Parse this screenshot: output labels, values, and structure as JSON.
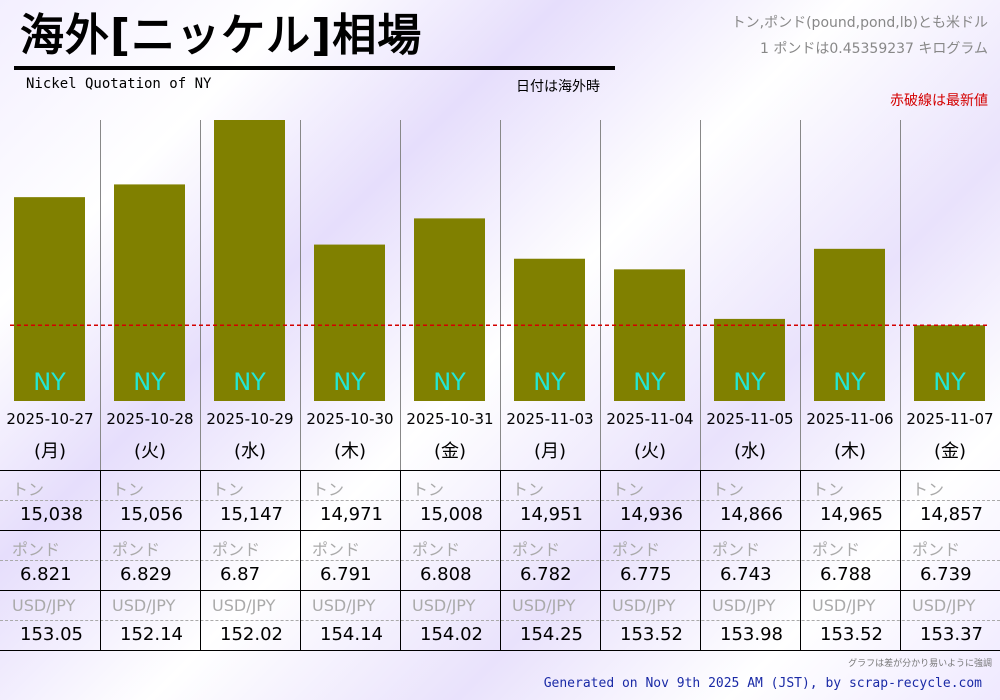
{
  "header": {
    "title": "海外[ニッケル]相場",
    "subtitle": "Nickel Quotation of NY",
    "date_note": "日付は海外時",
    "unit_note_1": "トン,ポンド(pound,pond,lb)とも米ドル",
    "unit_note_2": "1 ポンドは0.45359237 キログラム",
    "red_note": "赤破線は最新値"
  },
  "colors": {
    "bar": "#808000",
    "bar_label": "#22e6d4",
    "latest_line": "#d40000",
    "footer": "#1a2aa6"
  },
  "chart_data": {
    "type": "bar",
    "series": [
      {
        "name": "NY",
        "values": [
          15038,
          15056,
          15147,
          14971,
          15008,
          14951,
          14936,
          14866,
          14965,
          14857
        ]
      }
    ],
    "categories": [
      "2025-10-27",
      "2025-10-28",
      "2025-10-29",
      "2025-10-30",
      "2025-10-31",
      "2025-11-03",
      "2025-11-04",
      "2025-11-05",
      "2025-11-06",
      "2025-11-07"
    ],
    "weekdays": [
      "(月)",
      "(火)",
      "(水)",
      "(木)",
      "(金)",
      "(月)",
      "(火)",
      "(水)",
      "(木)",
      "(金)"
    ],
    "bar_label": "NY",
    "ylim": [
      14750,
      15147
    ],
    "latest_value": 14857,
    "latest_line_style": "dashed"
  },
  "table": {
    "label_ton": "トン",
    "label_pound": "ポンド",
    "label_fx": "USD/JPY",
    "ton": [
      "15,038",
      "15,056",
      "15,147",
      "14,971",
      "15,008",
      "14,951",
      "14,936",
      "14,866",
      "14,965",
      "14,857"
    ],
    "pound": [
      "6.821",
      "6.829",
      "6.87",
      "6.791",
      "6.808",
      "6.782",
      "6.775",
      "6.743",
      "6.788",
      "6.739"
    ],
    "usdjpy": [
      "153.05",
      "152.14",
      "152.02",
      "154.14",
      "154.02",
      "154.25",
      "153.52",
      "153.98",
      "153.52",
      "153.37"
    ]
  },
  "footnote": "グラフは差が分かり易いように強調",
  "footer": "Generated on Nov 9th 2025 AM (JST), by scrap-recycle.com"
}
